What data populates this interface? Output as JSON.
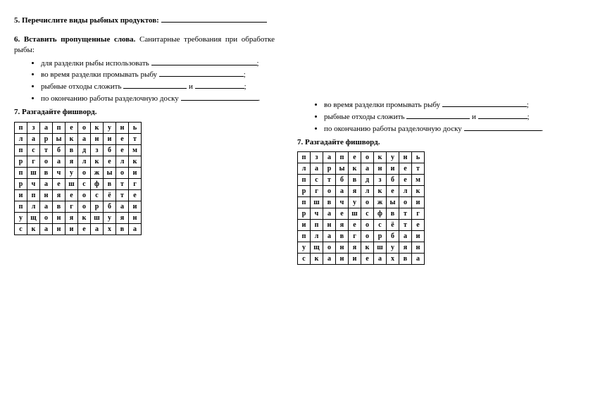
{
  "left": {
    "q5_prefix": "5. Перечислите виды рыбных продуктов:",
    "q6_prefix_bold": "6. Вставить пропущенные слова.",
    "q6_rest": " Санитарные требования при обработке рыбы:",
    "bullets": {
      "b1": "для разделки рыбы использовать ",
      "b2": "во время разделки промывать рыбу ",
      "b3a": "рыбные отходы сложить ",
      "b3mid": " и ",
      "b4": "по окончанию работы разделочную доску "
    },
    "q7": "7. Разгадайте фишворд.",
    "grid": [
      [
        "п",
        "з",
        "а",
        "п",
        "е",
        "о",
        "к",
        "у",
        "н",
        "ь"
      ],
      [
        "л",
        "а",
        "р",
        "ы",
        "к",
        "а",
        "н",
        "и",
        "е",
        "т"
      ],
      [
        "п",
        "с",
        "т",
        "б",
        "в",
        "д",
        "з",
        "б",
        "е",
        "м"
      ],
      [
        "р",
        "г",
        "о",
        "а",
        "я",
        "л",
        "к",
        "е",
        "л",
        "к"
      ],
      [
        "п",
        "ш",
        "в",
        "ч",
        "у",
        "о",
        "ж",
        "ы",
        "о",
        "и"
      ],
      [
        "р",
        "ч",
        "а",
        "е",
        "ш",
        "с",
        "ф",
        "в",
        "т",
        "г"
      ],
      [
        "и",
        "п",
        "н",
        "я",
        "е",
        "о",
        "с",
        "ё",
        "т",
        "е"
      ],
      [
        "п",
        "л",
        "а",
        "в",
        "г",
        "о",
        "р",
        "б",
        "а",
        "и"
      ],
      [
        "у",
        "щ",
        "о",
        "н",
        "я",
        "к",
        "ш",
        "у",
        "я",
        "н"
      ],
      [
        "с",
        "к",
        "а",
        "н",
        "и",
        "е",
        "а",
        "х",
        "в",
        "а"
      ]
    ]
  },
  "right": {
    "bullets": {
      "b2": "во время разделки промывать рыбу ",
      "b3a": "рыбные отходы сложить ",
      "b3mid": " и ",
      "b4": "по окончанию работы разделочную доску "
    },
    "q7": "7. Разгадайте фишворд.",
    "grid": [
      [
        "п",
        "з",
        "а",
        "п",
        "е",
        "о",
        "к",
        "у",
        "н",
        "ь"
      ],
      [
        "л",
        "а",
        "р",
        "ы",
        "к",
        "а",
        "н",
        "и",
        "е",
        "т"
      ],
      [
        "п",
        "с",
        "т",
        "б",
        "в",
        "д",
        "з",
        "б",
        "е",
        "м"
      ],
      [
        "р",
        "г",
        "о",
        "а",
        "я",
        "л",
        "к",
        "е",
        "л",
        "к"
      ],
      [
        "п",
        "ш",
        "в",
        "ч",
        "у",
        "о",
        "ж",
        "ы",
        "о",
        "и"
      ],
      [
        "р",
        "ч",
        "а",
        "е",
        "ш",
        "с",
        "ф",
        "в",
        "т",
        "г"
      ],
      [
        "и",
        "п",
        "н",
        "я",
        "е",
        "о",
        "с",
        "ё",
        "т",
        "е"
      ],
      [
        "п",
        "л",
        "а",
        "в",
        "г",
        "о",
        "р",
        "б",
        "а",
        "и"
      ],
      [
        "у",
        "щ",
        "о",
        "н",
        "я",
        "к",
        "ш",
        "у",
        "я",
        "н"
      ],
      [
        "с",
        "к",
        "а",
        "н",
        "и",
        "е",
        "а",
        "х",
        "в",
        "а"
      ]
    ]
  }
}
